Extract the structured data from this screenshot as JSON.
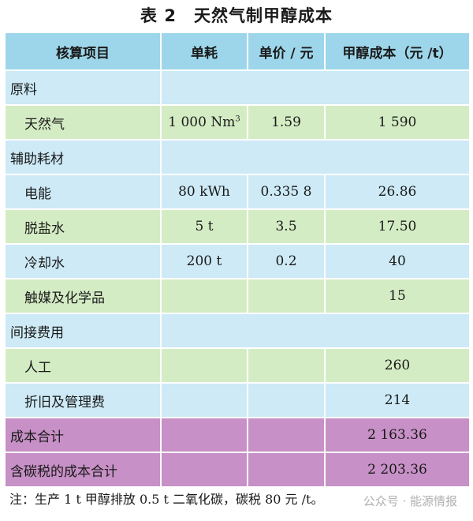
{
  "title": "表 2　天然气制甲醇成本",
  "headers": [
    "核算项目",
    "单耗",
    "单价 / 元",
    "甲醇成本（元 /t）"
  ],
  "rows": [
    {
      "label": "原料",
      "type": "section"
    },
    {
      "label": "天然气",
      "type": "item",
      "usage": "1 000 Nm",
      "usage_sup": "3",
      "price": "1.59",
      "cost": "1 590"
    },
    {
      "label": "辅助耗材",
      "type": "section"
    },
    {
      "label": "电能",
      "type": "item",
      "usage": "80 kWh",
      "price": "0.335 8",
      "cost": "26.86"
    },
    {
      "label": "脱盐水",
      "type": "item",
      "usage": "5 t",
      "price": "3.5",
      "cost": "17.50"
    },
    {
      "label": "冷却水",
      "type": "item",
      "usage": "200 t",
      "price": "0.2",
      "cost": "40"
    },
    {
      "label": "触媒及化学品",
      "type": "item",
      "usage": "",
      "price": "",
      "cost": "15"
    },
    {
      "label": "间接费用",
      "type": "section"
    },
    {
      "label": "人工",
      "type": "item",
      "usage": "",
      "price": "",
      "cost": "260"
    },
    {
      "label": "折旧及管理费",
      "type": "item",
      "usage": "",
      "price": "",
      "cost": "214"
    },
    {
      "label": "成本合计",
      "type": "total",
      "usage": "",
      "price": "",
      "cost": "2 163.36"
    },
    {
      "label": "含碳税的成本合计",
      "type": "total",
      "usage": "",
      "price": "",
      "cost": "2 203.36"
    }
  ],
  "note": "注：生产 1 t 甲醇排放 0.5 t 二氧化碳，碳税 80 元 /t。",
  "watermark": "公众号 · 能源情报",
  "colors": {
    "header": "#9dd6ea",
    "green_row": "#d4ecc4",
    "blue_row": "#cdeaf6",
    "total_row": "#c790c6"
  }
}
